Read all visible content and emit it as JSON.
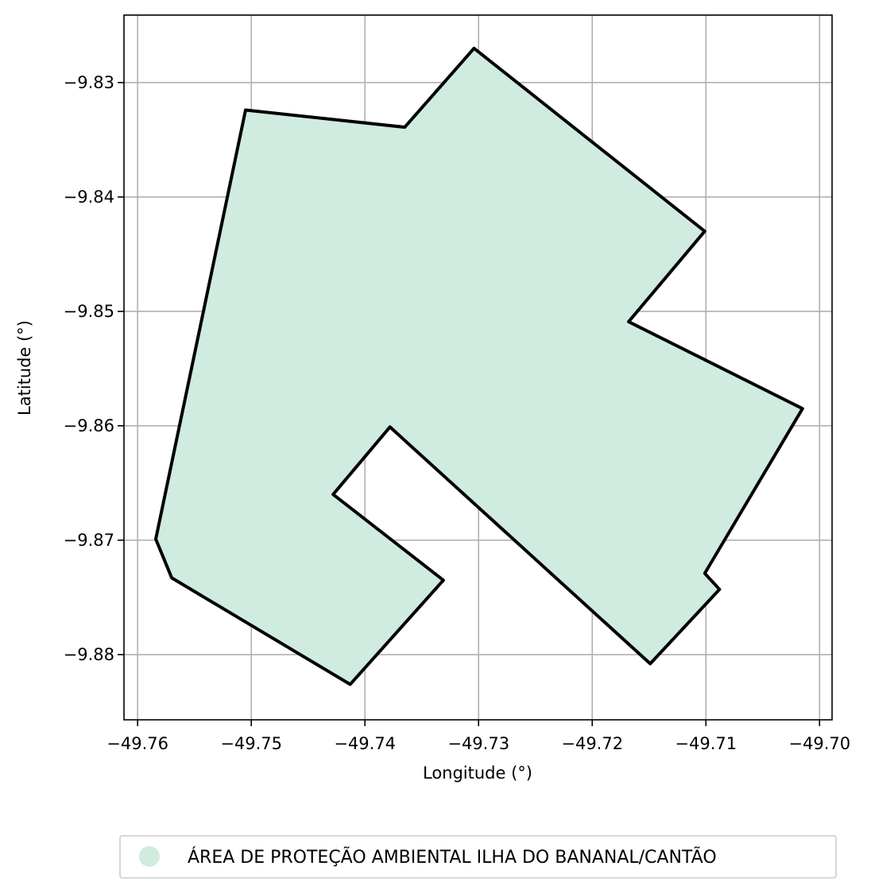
{
  "chart_data": {
    "type": "map",
    "xlabel": "Longitude (°)",
    "ylabel": "Latitude (°)",
    "xlim": [
      -49.7612,
      -49.6989
    ],
    "ylim": [
      -9.8857,
      -9.8241
    ],
    "xticks": [
      -49.76,
      -49.75,
      -49.74,
      -49.73,
      -49.72,
      -49.71,
      -49.7
    ],
    "xtick_labels": [
      "−49.76",
      "−49.75",
      "−49.74",
      "−49.73",
      "−49.72",
      "−49.71",
      "−49.70"
    ],
    "yticks": [
      -9.83,
      -9.84,
      -9.85,
      -9.86,
      -9.87,
      -9.88
    ],
    "ytick_labels": [
      "−9.83",
      "−9.84",
      "−9.85",
      "−9.86",
      "−9.87",
      "−9.88"
    ],
    "grid": true,
    "legend_position": "bottom-center",
    "series": [
      {
        "name": "ÁREA DE PROTEÇÃO AMBIENTAL ILHA DO BANANAL/CANTÃO",
        "fill": "#d0ebdf",
        "stroke": "#000000",
        "polygon": [
          [
            -49.7304,
            -9.827
          ],
          [
            -49.7101,
            -9.843
          ],
          [
            -49.7168,
            -9.8509
          ],
          [
            -49.7015,
            -9.8585
          ],
          [
            -49.7101,
            -9.8729
          ],
          [
            -49.7088,
            -9.8743
          ],
          [
            -49.7149,
            -9.8808
          ],
          [
            -49.7378,
            -9.8601
          ],
          [
            -49.7428,
            -9.866
          ],
          [
            -49.7331,
            -9.8735
          ],
          [
            -49.7413,
            -9.8826
          ],
          [
            -49.757,
            -9.8733
          ],
          [
            -49.7584,
            -9.8699
          ],
          [
            -49.7505,
            -9.8324
          ],
          [
            -49.7365,
            -9.8339
          ]
        ]
      }
    ]
  }
}
